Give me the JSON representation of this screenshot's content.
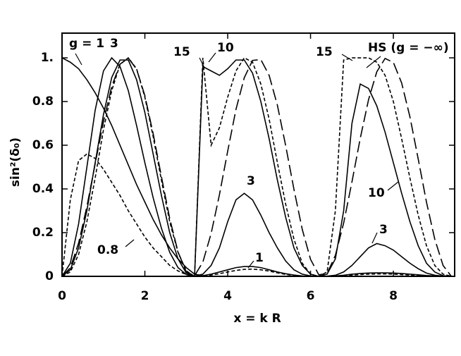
{
  "chart_data": {
    "type": "line",
    "xlabel": "x = k R",
    "ylabel": "sin²(δ₀)",
    "xlim": [
      0,
      9.48
    ],
    "ylim": [
      0,
      1.113
    ],
    "xticks": [
      0,
      2,
      4,
      6,
      8
    ],
    "yticks": [
      0,
      0.2,
      0.4,
      0.6,
      0.8,
      {
        "value": 1,
        "label": "1."
      }
    ],
    "x": [
      0,
      0.2,
      0.4,
      0.6,
      0.8,
      1,
      1.2,
      1.4,
      1.6,
      1.8,
      2,
      2.2,
      2.4,
      2.6,
      2.8,
      3,
      3.2,
      3.4,
      3.6,
      3.8,
      4,
      4.2,
      4.4,
      4.6,
      4.8,
      5,
      5.2,
      5.4,
      5.6,
      5.8,
      6,
      6.2,
      6.4,
      6.6,
      6.8,
      7,
      7.2,
      7.4,
      7.6,
      7.8,
      8,
      8.2,
      8.4,
      8.6,
      8.8,
      9,
      9.2,
      9.4
    ],
    "series": [
      {
        "color": "#000000",
        "dash": "solid",
        "values": [
          1,
          0.98,
          0.95,
          0.9,
          0.84,
          0.77,
          0.69,
          0.6,
          0.51,
          0.42,
          0.34,
          0.26,
          0.19,
          0.13,
          0.08,
          0.04,
          0.01,
          0.003,
          0.01,
          0.02,
          0.03,
          0.04,
          0.045,
          0.045,
          0.04,
          0.03,
          0.02,
          0.012,
          0.006,
          0.002,
          0,
          0,
          0,
          0.002,
          0.005,
          0.01,
          0.013,
          0.015,
          0.016,
          0.016,
          0.015,
          0.013,
          0.01,
          0.007,
          0.004,
          0.002,
          0.001,
          0
        ]
      },
      {
        "color": "#000000",
        "dash": "dashed",
        "values": [
          0,
          0.35,
          0.53,
          0.56,
          0.54,
          0.49,
          0.43,
          0.37,
          0.3,
          0.24,
          0.18,
          0.13,
          0.09,
          0.05,
          0.025,
          0.008,
          0,
          0.002,
          0.006,
          0.012,
          0.02,
          0.027,
          0.032,
          0.033,
          0.03,
          0.024,
          0.016,
          0.009,
          0.004,
          0.001,
          0,
          0,
          0,
          0.001,
          0.003,
          0.006,
          0.008,
          0.01,
          0.011,
          0.011,
          0.01,
          0.008,
          0.006,
          0.004,
          0.002,
          0.001,
          0,
          0
        ]
      },
      {
        "color": "#000000",
        "dash": "solid",
        "values": [
          0,
          0.06,
          0.24,
          0.5,
          0.76,
          0.94,
          1,
          0.96,
          0.85,
          0.69,
          0.52,
          0.36,
          0.22,
          0.11,
          0.04,
          0.008,
          0.001,
          0.01,
          0.05,
          0.13,
          0.25,
          0.35,
          0.38,
          0.35,
          0.28,
          0.2,
          0.13,
          0.07,
          0.03,
          0.01,
          0.002,
          0,
          0.001,
          0.005,
          0.02,
          0.05,
          0.09,
          0.13,
          0.15,
          0.14,
          0.12,
          0.09,
          0.06,
          0.035,
          0.015,
          0.005,
          0.001,
          0
        ]
      },
      {
        "color": "#000000",
        "dash": "solid",
        "values": [
          0,
          0.03,
          0.13,
          0.3,
          0.52,
          0.74,
          0.91,
          0.99,
          0.99,
          0.9,
          0.75,
          0.56,
          0.37,
          0.2,
          0.08,
          0.015,
          0,
          0.96,
          0.94,
          0.92,
          0.95,
          0.99,
          0.99,
          0.93,
          0.8,
          0.63,
          0.44,
          0.27,
          0.13,
          0.05,
          0.01,
          0,
          0.01,
          0.08,
          0.3,
          0.7,
          0.88,
          0.86,
          0.78,
          0.66,
          0.52,
          0.38,
          0.25,
          0.14,
          0.06,
          0.02,
          0.003,
          0
        ]
      },
      {
        "color": "#000000",
        "dash": "dashed",
        "values": [
          0,
          0.02,
          0.1,
          0.25,
          0.45,
          0.67,
          0.85,
          0.97,
          1,
          0.95,
          0.82,
          0.64,
          0.44,
          0.25,
          0.11,
          0.025,
          0,
          1,
          0.6,
          0.68,
          0.82,
          0.94,
          1,
          0.98,
          0.88,
          0.72,
          0.52,
          0.33,
          0.17,
          0.06,
          0.01,
          0,
          0.02,
          0.3,
          0.99,
          1,
          1,
          1,
          0.98,
          0.92,
          0.8,
          0.63,
          0.45,
          0.28,
          0.14,
          0.05,
          0.01,
          0
        ]
      },
      {
        "color": "#000000",
        "dash": "long-dash",
        "values": [
          0,
          0.039,
          0.152,
          0.319,
          0.515,
          0.708,
          0.869,
          0.971,
          0.999,
          0.948,
          0.827,
          0.653,
          0.456,
          0.265,
          0.112,
          0.02,
          0.003,
          0.065,
          0.196,
          0.373,
          0.573,
          0.764,
          0.909,
          0.988,
          0.992,
          0.92,
          0.783,
          0.598,
          0.398,
          0.215,
          0.078,
          0.007,
          0.013,
          0.096,
          0.244,
          0.432,
          0.631,
          0.808,
          0.936,
          0.997,
          0.979,
          0.885,
          0.73,
          0.537,
          0.339,
          0.17,
          0.05,
          0
        ]
      }
    ],
    "annotations": [
      "g = 1",
      "3",
      "15",
      "10",
      "HS (g = −∞)",
      "15",
      "0.8",
      "3",
      "1",
      "10",
      "3"
    ]
  }
}
